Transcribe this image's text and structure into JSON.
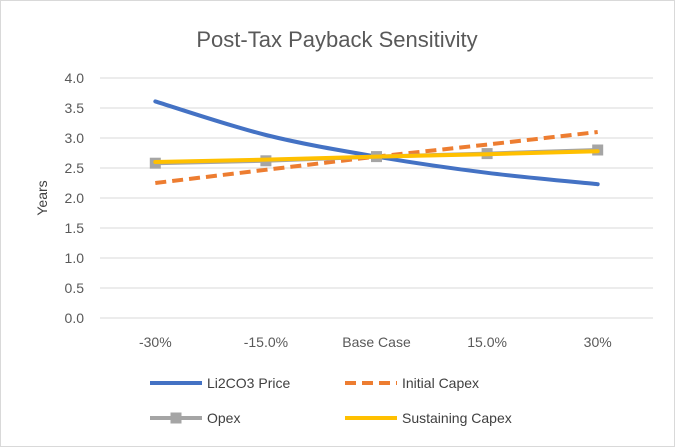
{
  "chart_data": {
    "type": "line",
    "title": "Post-Tax Payback Sensitivity",
    "xlabel": "",
    "ylabel": "Years",
    "categories": [
      "-30%",
      "-15.0%",
      "Base Case",
      "15.0%",
      "30%"
    ],
    "ylim": [
      0,
      4.0
    ],
    "yticks": [
      "0.0",
      "0.5",
      "1.0",
      "1.5",
      "2.0",
      "2.5",
      "3.0",
      "3.5",
      "4.0"
    ],
    "grid": true,
    "legend_position": "bottom",
    "series": [
      {
        "name": "Li2CO3 Price",
        "values": [
          3.61,
          3.05,
          2.69,
          2.42,
          2.23
        ],
        "color": "#4472c4",
        "dash": "solid",
        "marker": "none",
        "smooth": true
      },
      {
        "name": "Initial Capex",
        "values": [
          2.25,
          2.47,
          2.69,
          2.89,
          3.1
        ],
        "color": "#ed7d31",
        "dash": "dashed",
        "marker": "none",
        "smooth": false
      },
      {
        "name": "Opex",
        "values": [
          2.58,
          2.62,
          2.69,
          2.74,
          2.8
        ],
        "color": "#a5a5a5",
        "dash": "solid",
        "marker": "square",
        "smooth": false
      },
      {
        "name": "Sustaining Capex",
        "values": [
          2.6,
          2.64,
          2.69,
          2.73,
          2.78
        ],
        "color": "#ffc000",
        "dash": "solid",
        "marker": "none",
        "smooth": false
      }
    ]
  }
}
